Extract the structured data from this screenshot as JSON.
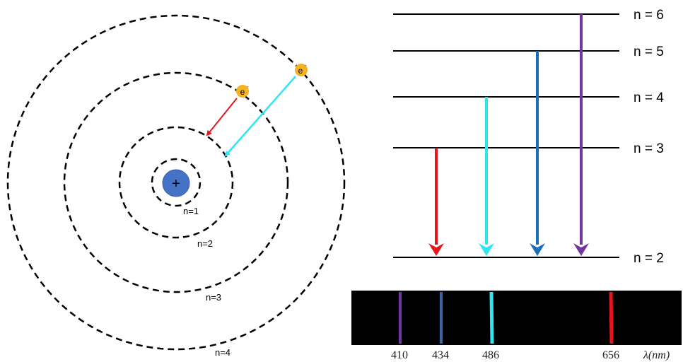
{
  "atom": {
    "nucleus_symbol": "+",
    "electron_symbol": "e",
    "electron_charge": "-",
    "orbit_labels": [
      "n=1",
      "n=2",
      "n=3",
      "n=4"
    ],
    "colors": {
      "nucleus": "#4472c4",
      "electron": "#f5b324",
      "orbit": "#000000"
    }
  },
  "transitions": [
    {
      "from": 3,
      "to": 2,
      "color": "#e8141c"
    },
    {
      "from": 4,
      "to": 2,
      "color": "#2ee6f2"
    },
    {
      "from": 5,
      "to": 2,
      "color": "#1b6fb8"
    },
    {
      "from": 6,
      "to": 2,
      "color": "#7335a0"
    }
  ],
  "atom_transitions": [
    {
      "from": 3,
      "to": 2,
      "color": "#e8141c"
    },
    {
      "from": 4,
      "to": 2,
      "color": "#2ee6f2"
    }
  ],
  "energy_levels": {
    "labels": [
      "n = 6",
      "n = 5",
      "n = 4",
      "n = 3",
      "n = 2"
    ]
  },
  "spectrum": {
    "lines": [
      {
        "wavelength": 410,
        "label": "410",
        "color": "#7335a0"
      },
      {
        "wavelength": 434,
        "label": "434",
        "color": "#3a63a8"
      },
      {
        "wavelength": 486,
        "label": "486",
        "color": "#2ee6f2"
      },
      {
        "wavelength": 656,
        "label": "656",
        "color": "#e8141c"
      }
    ],
    "axis_label": "λ(nm)",
    "background": "#000000"
  }
}
